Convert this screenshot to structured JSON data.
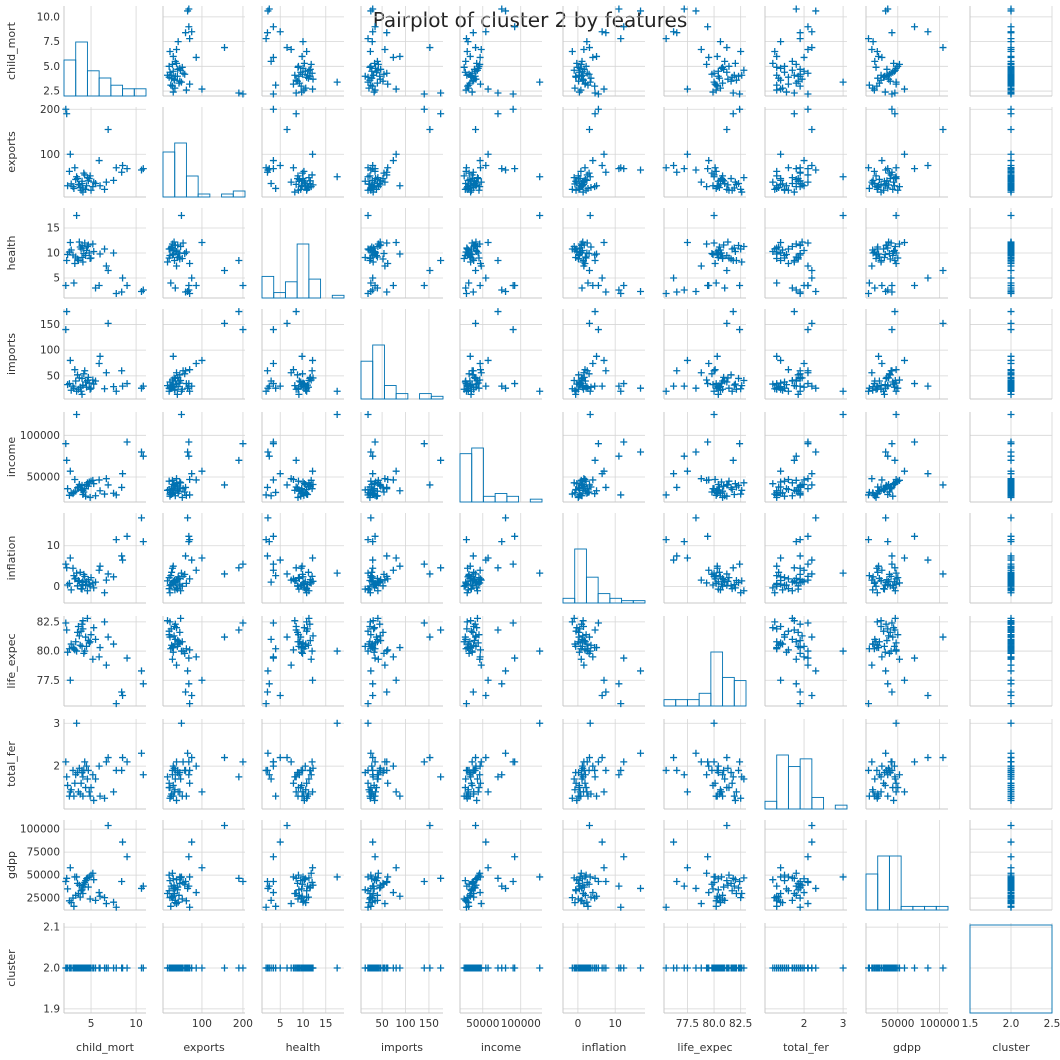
{
  "chart_data": {
    "type": "scatter",
    "title": "Pairplot of cluster 2 by features",
    "variables": [
      "child_mort",
      "exports",
      "health",
      "imports",
      "income",
      "inflation",
      "life_expec",
      "total_fer",
      "gdpp",
      "cluster"
    ],
    "marker": "+",
    "color": "#0072b2",
    "grid": true,
    "diagonal": "histogram",
    "axes": {
      "child_mort": {
        "range": [
          2.0,
          11.1
        ],
        "ticks": [
          2.5,
          5.0,
          7.5,
          10.0
        ],
        "tick_labels_y": [
          "2.5",
          "5.0",
          "7.5",
          "10.0"
        ],
        "ticks_x": [
          5,
          10
        ],
        "tick_labels_x": [
          "5",
          "10"
        ]
      },
      "exports": {
        "range": [
          5,
          205
        ],
        "ticks": [
          100,
          200
        ],
        "tick_labels_y": [
          "100",
          "200"
        ],
        "ticks_x": [
          100,
          200
        ],
        "tick_labels_x": [
          "100",
          "200"
        ]
      },
      "health": {
        "range": [
          1.0,
          19.0
        ],
        "ticks": [
          5,
          10,
          15
        ],
        "tick_labels_y": [
          "5",
          "10",
          "15"
        ],
        "ticks_x": [
          5,
          10,
          15
        ],
        "tick_labels_x": [
          "5",
          "10",
          "15"
        ]
      },
      "imports": {
        "range": [
          5,
          180
        ],
        "ticks": [
          50,
          100,
          150
        ],
        "tick_labels_y": [
          "50",
          "100",
          "150"
        ],
        "ticks_x": [
          50,
          100,
          150
        ],
        "tick_labels_x": [
          "50",
          "100",
          "150"
        ]
      },
      "income": {
        "range": [
          20000,
          128000
        ],
        "ticks": [
          50000,
          100000
        ],
        "tick_labels_y": [
          "50000",
          "100000"
        ],
        "ticks_x": [
          50000,
          100000
        ],
        "tick_labels_x": [
          "50000",
          "100000"
        ]
      },
      "inflation": {
        "range": [
          -4,
          18
        ],
        "ticks": [
          0,
          10
        ],
        "tick_labels_y": [
          "0",
          "10"
        ],
        "ticks_x": [
          0,
          10
        ],
        "tick_labels_x": [
          "0",
          "10"
        ]
      },
      "life_expec": {
        "range": [
          75.3,
          83.0
        ],
        "ticks": [
          77.5,
          80.0,
          82.5
        ],
        "tick_labels_y": [
          "77.5",
          "80.0",
          "82.5"
        ],
        "ticks_x": [
          77.5,
          80.0,
          82.5
        ],
        "tick_labels_x": [
          "77.5",
          "80.0",
          "82.5"
        ]
      },
      "total_fer": {
        "range": [
          1.0,
          3.1
        ],
        "ticks": [
          2,
          3
        ],
        "tick_labels_y": [
          "2",
          "3"
        ],
        "ticks_x": [
          2,
          3
        ],
        "tick_labels_x": [
          "2",
          "3"
        ]
      },
      "gdpp": {
        "range": [
          12000,
          110000
        ],
        "ticks": [
          25000,
          50000,
          75000,
          100000
        ],
        "tick_labels_y": [
          "25000",
          "50000",
          "75000",
          "100000"
        ],
        "ticks_x": [
          50000,
          100000
        ],
        "tick_labels_x": [
          "50000",
          "100000"
        ]
      },
      "cluster": {
        "range": [
          1.5,
          2.5
        ],
        "y_range": [
          1.89,
          2.11
        ],
        "ticks": [
          1.9,
          2.0,
          2.1
        ],
        "tick_labels_y": [
          "1.9",
          "2.0",
          "2.1"
        ],
        "ticks_x": [
          1.5,
          2.0,
          2.5
        ],
        "tick_labels_x": [
          "1.5",
          "2.0",
          "2.5"
        ]
      }
    },
    "points": [
      [
        2.6,
        62,
        10.2,
        35,
        28000,
        0.8,
        80.2,
        1.3,
        22000,
        2
      ],
      [
        3.0,
        28,
        9.6,
        30,
        30000,
        4.5,
        80.3,
        1.9,
        25000,
        2
      ],
      [
        3.3,
        44,
        9.2,
        40,
        33000,
        2.0,
        80.8,
        1.8,
        28000,
        2
      ],
      [
        3.6,
        33,
        8.5,
        24,
        38000,
        1.5,
        82.1,
        1.4,
        30000,
        2
      ],
      [
        3.9,
        20,
        10.8,
        20,
        35000,
        -0.5,
        81.7,
        1.6,
        33000,
        2
      ],
      [
        4.0,
        35,
        11.5,
        45,
        40000,
        1.0,
        82.3,
        1.9,
        36000,
        2
      ],
      [
        4.1,
        25,
        11.0,
        32,
        29000,
        0.5,
        81.9,
        1.3,
        38000,
        2
      ],
      [
        4.2,
        58,
        9.9,
        54,
        32000,
        3.0,
        79.8,
        1.9,
        40000,
        2
      ],
      [
        4.3,
        54,
        12.0,
        60,
        36000,
        2.5,
        80.0,
        2.1,
        42000,
        2
      ],
      [
        4.4,
        22,
        9.5,
        38,
        27000,
        0.3,
        81.2,
        1.5,
        44000,
        2
      ],
      [
        4.5,
        30,
        10.5,
        28,
        41000,
        1.2,
        80.4,
        2.0,
        46000,
        2
      ],
      [
        4.6,
        48,
        11.3,
        41,
        43000,
        -1.0,
        82.8,
        1.7,
        47000,
        2
      ],
      [
        4.8,
        46,
        10.0,
        36,
        44000,
        0.6,
        80.7,
        1.4,
        48000,
        2
      ],
      [
        5.0,
        20,
        9.0,
        26,
        45000,
        2.2,
        81.4,
        1.5,
        50000,
        2
      ],
      [
        5.2,
        28,
        11.8,
        42,
        46000,
        0.9,
        79.3,
        1.8,
        52000,
        2
      ],
      [
        5.3,
        38,
        10.3,
        34,
        42000,
        -0.3,
        82.0,
        1.2,
        45000,
        2
      ],
      [
        3.2,
        70,
        7.9,
        62,
        47000,
        1.9,
        80.1,
        1.6,
        48000,
        2
      ],
      [
        3.5,
        46,
        8.8,
        52,
        37000,
        0.2,
        81.6,
        1.85,
        41000,
        2
      ],
      [
        3.8,
        26,
        11.2,
        28,
        38000,
        3.5,
        80.5,
        1.35,
        26000,
        2
      ],
      [
        4.1,
        16,
        8.2,
        31,
        34000,
        1.4,
        82.6,
        1.75,
        30000,
        2
      ],
      [
        4.7,
        41,
        11.6,
        47,
        39000,
        1.7,
        80.9,
        1.9,
        37000,
        2
      ],
      [
        2.8,
        34,
        10.6,
        22,
        31000,
        -0.8,
        80.6,
        1.45,
        20000,
        2
      ],
      [
        2.4,
        30,
        9.7,
        33,
        36000,
        0.4,
        79.9,
        1.55,
        35000,
        2
      ],
      [
        3.1,
        24,
        4.0,
        26,
        31500,
        2.7,
        80.2,
        1.3,
        16000,
        2
      ],
      [
        5.5,
        35,
        3.0,
        40,
        27500,
        1.1,
        81.0,
        1.7,
        22500,
        2
      ],
      [
        5.9,
        86,
        3.5,
        74,
        46500,
        4.0,
        79.5,
        2.0,
        31000,
        2
      ],
      [
        6.5,
        22,
        10.8,
        25,
        29500,
        -1.5,
        82.5,
        1.25,
        25500,
        2
      ],
      [
        6.0,
        30,
        9.8,
        88,
        33500,
        5.0,
        80.3,
        1.3,
        27000,
        2
      ],
      [
        6.7,
        38,
        7.4,
        56,
        48000,
        1.6,
        78.8,
        2.1,
        19000,
        2
      ],
      [
        7.5,
        42,
        10.0,
        29,
        30500,
        2.4,
        80.6,
        1.4,
        20500,
        2
      ],
      [
        2.3,
        190,
        8.5,
        175,
        70000,
        4.6,
        81.8,
        1.75,
        46500,
        2
      ],
      [
        2.2,
        200,
        3.5,
        140,
        90000,
        5.5,
        82.4,
        2.1,
        43000,
        2
      ],
      [
        6.9,
        155,
        6.5,
        152,
        40500,
        3.1,
        81.2,
        2.2,
        104000,
        2
      ],
      [
        2.7,
        100,
        12.1,
        80,
        57000,
        7.0,
        77.5,
        1.4,
        58000,
        2
      ],
      [
        7.8,
        70,
        1.9,
        20,
        28500,
        11.5,
        75.5,
        1.9,
        15000,
        2
      ],
      [
        8.4,
        60,
        2.2,
        60,
        37500,
        7.5,
        76.5,
        1.9,
        43000,
        2
      ],
      [
        8.5,
        75,
        5.0,
        30,
        54000,
        6.5,
        76.2,
        2.2,
        86000,
        2
      ],
      [
        9.0,
        68,
        3.5,
        35,
        92000,
        12.3,
        79.4,
        2.1,
        70000,
        2
      ],
      [
        10.6,
        65,
        2.3,
        26,
        80000,
        16.8,
        78.3,
        2.3,
        35500,
        2
      ],
      [
        10.8,
        68,
        2.6,
        30,
        75000,
        11.0,
        77.2,
        1.8,
        38000,
        2
      ],
      [
        3.4,
        50,
        17.5,
        20,
        125000,
        3.3,
        80.0,
        3.0,
        48000,
        2
      ],
      [
        4.0,
        40,
        9.1,
        14,
        34500,
        -0.6,
        80.4,
        1.85,
        34000,
        2
      ],
      [
        3.7,
        32,
        12.2,
        46,
        41000,
        1.3,
        81.3,
        1.95,
        39000,
        2
      ],
      [
        4.9,
        52,
        8.9,
        24,
        25500,
        0.1,
        80.8,
        1.3,
        24000,
        2
      ]
    ]
  }
}
